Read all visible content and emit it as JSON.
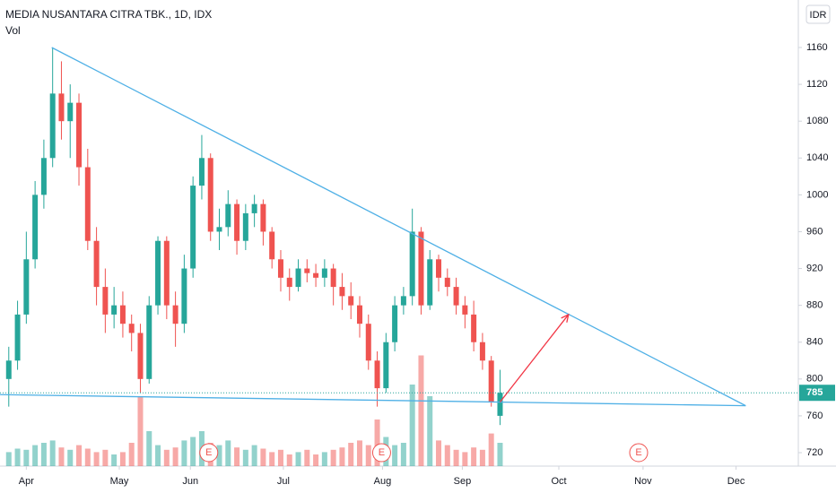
{
  "chart_data": {
    "type": "candlestick",
    "title": "MEDIA NUSANTARA CITRA TBK., 1D, IDX",
    "volume_label": "Vol",
    "currency": "IDR",
    "up_color": "#26a69a",
    "down_color": "#ef5350",
    "xlim": [
      0,
      91
    ],
    "xticks": [
      {
        "value": 3,
        "label": "Apr"
      },
      {
        "value": 13.6,
        "label": "May"
      },
      {
        "value": 21.7,
        "label": "Jun"
      },
      {
        "value": 32.3,
        "label": "Jul"
      },
      {
        "value": 43.6,
        "label": "Aug"
      },
      {
        "value": 52.7,
        "label": "Sep"
      },
      {
        "value": 63.7,
        "label": "Oct"
      },
      {
        "value": 73.3,
        "label": "Nov"
      },
      {
        "value": 83.9,
        "label": "Dec"
      }
    ],
    "ylim": [
      705.4,
      1211.6
    ],
    "yticks": [
      720,
      760,
      800,
      840,
      880,
      920,
      960,
      1000,
      1040,
      1080,
      1120,
      1160
    ],
    "volume_ylim": [
      0,
      100
    ],
    "x": [
      1,
      2,
      3,
      4,
      5,
      6,
      7,
      8,
      9,
      10,
      11,
      12,
      13,
      14,
      15,
      16,
      17,
      18,
      19,
      20,
      21,
      22,
      23,
      24,
      25,
      26,
      27,
      28,
      29,
      30,
      31,
      32,
      33,
      34,
      35,
      36,
      37,
      38,
      39,
      40,
      41,
      42,
      43,
      44,
      45,
      46,
      47,
      48,
      49,
      50,
      51,
      52,
      53,
      54,
      55,
      56,
      57
    ],
    "open": [
      800,
      820,
      870,
      930,
      1000,
      1040,
      1110,
      1080,
      1100,
      1030,
      950,
      900,
      870,
      880,
      860,
      850,
      800,
      880,
      950,
      880,
      860,
      920,
      1010,
      1040,
      960,
      965,
      990,
      950,
      980,
      990,
      960,
      930,
      910,
      900,
      920,
      915,
      910,
      920,
      900,
      890,
      880,
      860,
      820,
      790,
      840,
      880,
      890,
      960,
      880,
      930,
      910,
      900,
      880,
      870,
      840,
      820,
      760
    ],
    "high": [
      835,
      885,
      960,
      1015,
      1060,
      1160,
      1145,
      1120,
      1110,
      1050,
      965,
      920,
      900,
      895,
      870,
      860,
      890,
      955,
      955,
      895,
      935,
      1020,
      1065,
      1045,
      985,
      1005,
      995,
      990,
      1000,
      995,
      965,
      940,
      920,
      930,
      930,
      925,
      930,
      925,
      915,
      905,
      890,
      870,
      830,
      850,
      890,
      900,
      985,
      965,
      940,
      935,
      920,
      910,
      890,
      885,
      850,
      825,
      810
    ],
    "low": [
      770,
      810,
      860,
      920,
      985,
      1030,
      1060,
      1040,
      1010,
      940,
      880,
      850,
      855,
      845,
      830,
      785,
      795,
      870,
      865,
      835,
      850,
      910,
      995,
      950,
      940,
      955,
      935,
      940,
      965,
      945,
      920,
      895,
      885,
      895,
      905,
      900,
      900,
      880,
      875,
      865,
      845,
      810,
      770,
      785,
      830,
      870,
      880,
      870,
      875,
      895,
      890,
      870,
      855,
      830,
      810,
      770,
      750
    ],
    "close": [
      820,
      870,
      930,
      1000,
      1040,
      1110,
      1080,
      1100,
      1030,
      950,
      900,
      870,
      880,
      860,
      850,
      800,
      880,
      950,
      880,
      860,
      920,
      1010,
      1040,
      960,
      965,
      990,
      950,
      980,
      990,
      960,
      930,
      910,
      900,
      920,
      915,
      910,
      920,
      900,
      890,
      880,
      860,
      820,
      790,
      840,
      880,
      890,
      960,
      880,
      930,
      910,
      900,
      880,
      870,
      840,
      820,
      775,
      785
    ],
    "volume": [
      12,
      15,
      14,
      18,
      20,
      22,
      16,
      14,
      18,
      15,
      12,
      14,
      10,
      12,
      20,
      60,
      30,
      18,
      14,
      16,
      22,
      25,
      30,
      20,
      18,
      22,
      16,
      14,
      18,
      15,
      12,
      14,
      10,
      12,
      14,
      10,
      12,
      14,
      16,
      20,
      22,
      18,
      40,
      25,
      18,
      20,
      70,
      95,
      60,
      22,
      18,
      14,
      12,
      16,
      14,
      28,
      20
    ],
    "last_price": 785,
    "lines": [
      {
        "color": "#4fb0e6",
        "x": [
          5.9,
          85
        ],
        "y": [
          1160,
          771
        ]
      },
      {
        "color": "#4fb0e6",
        "x": [
          0,
          85
        ],
        "y": [
          783,
          771
        ]
      },
      {
        "color": "#f23645",
        "x": [
          57,
          64.8
        ],
        "y": [
          775,
          870
        ],
        "arrow": true
      }
    ],
    "events": [
      {
        "x": 23.8,
        "label": "E"
      },
      {
        "x": 43.5,
        "label": "E"
      },
      {
        "x": 72.8,
        "label": "E"
      }
    ]
  }
}
